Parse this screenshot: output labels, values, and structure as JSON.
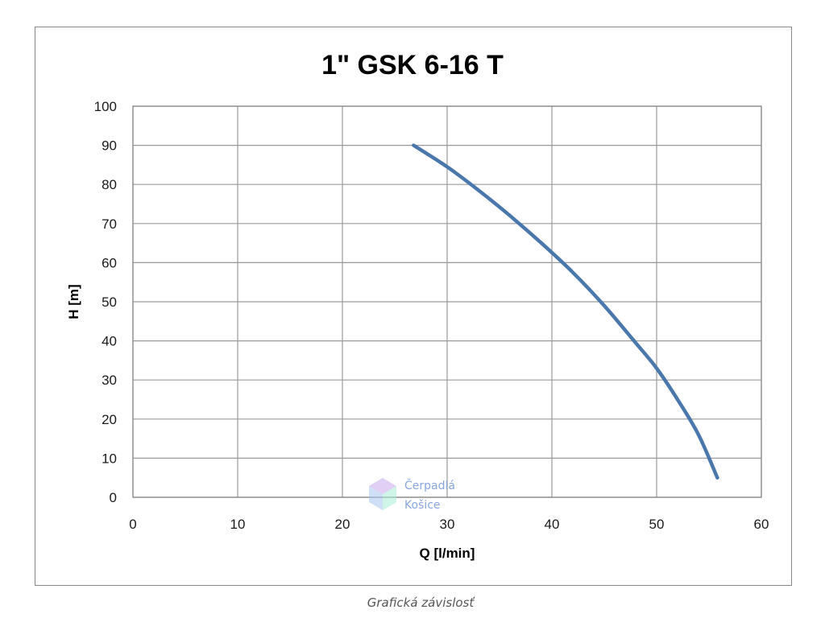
{
  "chart_data": {
    "type": "line",
    "title": "1\" GSK 6-16 T",
    "xlabel": "Q [l/min]",
    "ylabel": "H [m]",
    "xlim": [
      0,
      60
    ],
    "ylim": [
      0,
      100
    ],
    "x_ticks": [
      "0",
      "10",
      "20",
      "30",
      "40",
      "50",
      "60"
    ],
    "y_ticks": [
      "0",
      "10",
      "20",
      "30",
      "40",
      "50",
      "60",
      "70",
      "80",
      "90",
      "100"
    ],
    "grid": true,
    "legend": "none",
    "series": [
      {
        "color": "#4a78ad",
        "x": [
          26.8,
          30,
          33,
          36,
          39,
          42,
          45,
          48,
          50,
          52,
          54,
          55.8
        ],
        "y": [
          90,
          84.5,
          78.5,
          72,
          65,
          57.5,
          49,
          39.5,
          33,
          25,
          16,
          5
        ]
      }
    ]
  },
  "watermark": {
    "line1": "Čerpadlá",
    "line2": "Košice",
    "icon": "hexagon-logo-icon"
  },
  "caption": "Grafická závislosť"
}
